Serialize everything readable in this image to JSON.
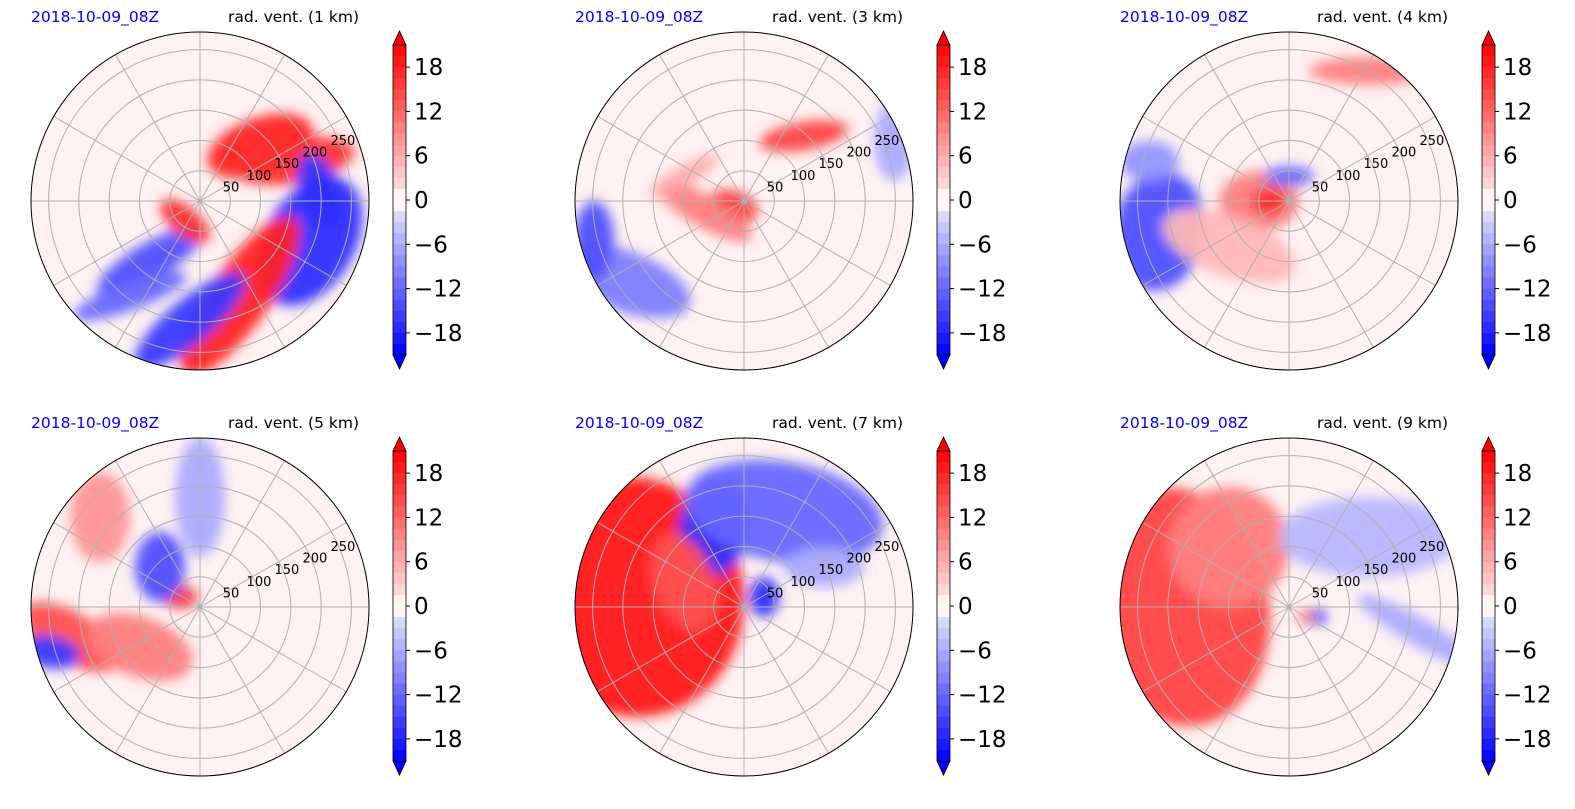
{
  "chart_data": [
    {
      "type": "heatmap",
      "timestamp": "2018-10-09_08Z",
      "title": "rad. vent. (1 km)",
      "radial_tick_labels": [
        "50",
        "100",
        "150",
        "200",
        "250"
      ],
      "colorbar": {
        "ticks": [
          18,
          12,
          6,
          0,
          -6,
          -12,
          -18
        ],
        "tick_labels": [
          "18",
          "12",
          "6",
          "0",
          "−6",
          "−12",
          "−18"
        ],
        "range": [
          -21,
          21
        ],
        "extend": "both"
      }
    },
    {
      "type": "heatmap",
      "timestamp": "2018-10-09_08Z",
      "title": "rad. vent. (3 km)",
      "radial_tick_labels": [
        "50",
        "100",
        "150",
        "200",
        "250"
      ],
      "colorbar": {
        "ticks": [
          18,
          12,
          6,
          0,
          -6,
          -12,
          -18
        ],
        "tick_labels": [
          "18",
          "12",
          "6",
          "0",
          "−6",
          "−12",
          "−18"
        ],
        "range": [
          -21,
          21
        ],
        "extend": "both"
      }
    },
    {
      "type": "heatmap",
      "timestamp": "2018-10-09_08Z",
      "title": "rad. vent. (4 km)",
      "radial_tick_labels": [
        "50",
        "100",
        "150",
        "200",
        "250"
      ],
      "colorbar": {
        "ticks": [
          18,
          12,
          6,
          0,
          -6,
          -12,
          -18
        ],
        "tick_labels": [
          "18",
          "12",
          "6",
          "0",
          "−6",
          "−12",
          "−18"
        ],
        "range": [
          -21,
          21
        ],
        "extend": "both"
      }
    },
    {
      "type": "heatmap",
      "timestamp": "2018-10-09_08Z",
      "title": "rad. vent. (5 km)",
      "radial_tick_labels": [
        "50",
        "100",
        "150",
        "200",
        "250"
      ],
      "colorbar": {
        "ticks": [
          18,
          12,
          6,
          0,
          -6,
          -12,
          -18
        ],
        "tick_labels": [
          "18",
          "12",
          "6",
          "0",
          "−6",
          "−12",
          "−18"
        ],
        "range": [
          -21,
          21
        ],
        "extend": "both"
      }
    },
    {
      "type": "heatmap",
      "timestamp": "2018-10-09_08Z",
      "title": "rad. vent. (7 km)",
      "radial_tick_labels": [
        "50",
        "100",
        "150",
        "200",
        "250"
      ],
      "colorbar": {
        "ticks": [
          18,
          12,
          6,
          0,
          -6,
          -12,
          -18
        ],
        "tick_labels": [
          "18",
          "12",
          "6",
          "0",
          "−6",
          "−12",
          "−18"
        ],
        "range": [
          -21,
          21
        ],
        "extend": "both"
      }
    },
    {
      "type": "heatmap",
      "timestamp": "2018-10-09_08Z",
      "title": "rad. vent. (9 km)",
      "radial_tick_labels": [
        "50",
        "100",
        "150",
        "200",
        "250"
      ],
      "colorbar": {
        "ticks": [
          18,
          12,
          6,
          0,
          -6,
          -12,
          -18
        ],
        "tick_labels": [
          "18",
          "12",
          "6",
          "0",
          "−6",
          "−12",
          "−18"
        ],
        "range": [
          -21,
          21
        ],
        "extend": "both"
      }
    }
  ],
  "colors": {
    "positive": "#ff0000",
    "negative": "#0000ff",
    "neutral": "#ffffff",
    "grid": "#b0b0b0",
    "timestamp_text": "#0000ff"
  }
}
